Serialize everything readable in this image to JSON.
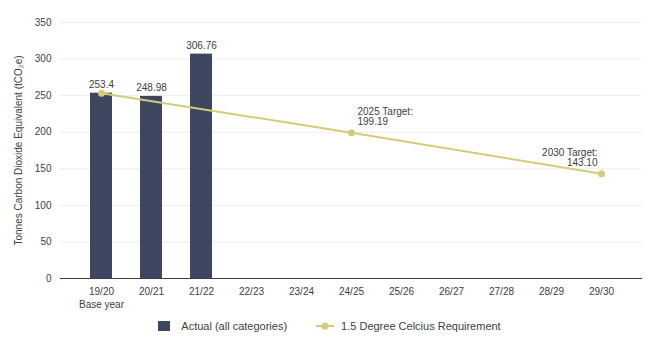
{
  "chart_data": {
    "type": "bar",
    "categories": [
      "19/20",
      "20/21",
      "21/22",
      "22/23",
      "23/24",
      "24/25",
      "25/26",
      "26/27",
      "27/28",
      "28/29",
      "29/30"
    ],
    "series": [
      {
        "name": "Actual (all categories)",
        "type": "bar",
        "color": "#3d4860",
        "data_labels": true,
        "values": [
          253.4,
          248.98,
          306.76,
          null,
          null,
          null,
          null,
          null,
          null,
          null,
          null
        ]
      },
      {
        "name": "1.5 Degree Celcius Requirement",
        "type": "line",
        "color": "#d4cc78",
        "marker": "circle",
        "values": [
          253.4,
          null,
          null,
          null,
          null,
          199.19,
          null,
          null,
          null,
          null,
          143.1
        ]
      }
    ],
    "ylabel": "Tonnes Carbon Dioxide Equivalent (tCO₂e)",
    "ylim": [
      0,
      350
    ],
    "yticks": [
      0,
      50,
      100,
      150,
      200,
      250,
      300,
      350
    ],
    "annotations": [
      {
        "text": "Base year",
        "x": "19/20"
      },
      {
        "text": "2025 Target:\n199.19",
        "x": "24/25",
        "y": 199.19
      },
      {
        "text": "2030 Target:\n143.10",
        "x": "29/30",
        "y": 143.1
      }
    ],
    "grid": true,
    "legend": "bottom"
  }
}
